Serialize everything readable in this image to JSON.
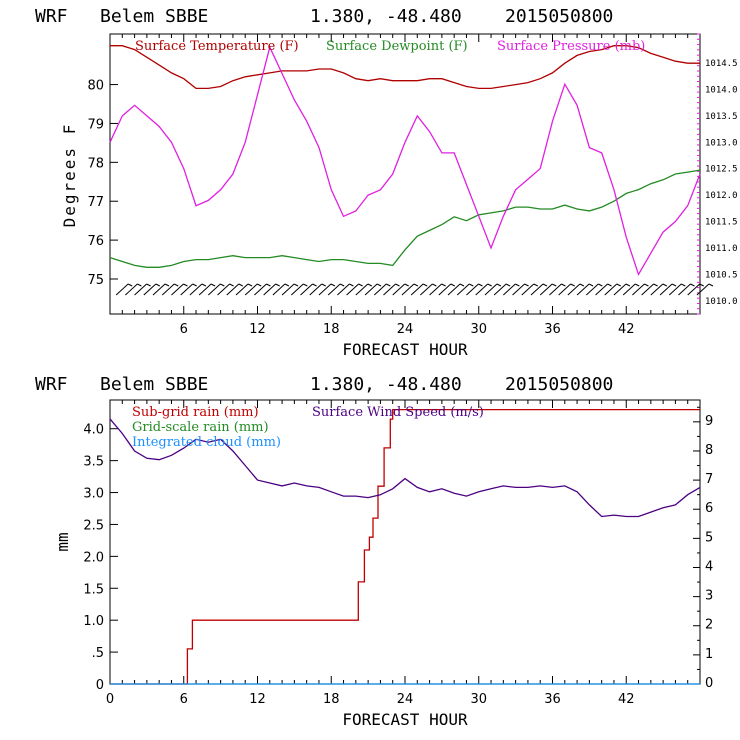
{
  "panels": [
    {
      "header": {
        "model": "WRF",
        "station": "Belem SBBE",
        "coords": "1.380, -48.480",
        "run": "2015050800"
      }
    },
    {
      "header": {
        "model": "WRF",
        "station": "Belem SBBE",
        "coords": "1.380, -48.480",
        "run": "2015050800"
      }
    }
  ],
  "chart_data": [
    {
      "type": "line",
      "xlabel": "FORECAST HOUR",
      "ylabel": "Degrees F",
      "x_ticks": [
        "6",
        "12",
        "18",
        "24",
        "30",
        "36",
        "42"
      ],
      "xlim": [
        0,
        48
      ],
      "y_ticks": [
        "75",
        "76",
        "77",
        "78",
        "79",
        "80"
      ],
      "ylim": [
        74.1,
        81.3
      ],
      "y2_ticks": [
        "1010.0",
        "1010.5",
        "1011.0",
        "1011.5",
        "1012.0",
        "1012.5",
        "1013.0",
        "1013.5",
        "1014.0",
        "1014.5"
      ],
      "y2lim": [
        1009.75,
        1015.05
      ],
      "legend": "top",
      "series": [
        {
          "name": "Surface Temperature (F)",
          "color": "#b00000",
          "axis": "left",
          "x": [
            0,
            1,
            2,
            3,
            4,
            5,
            6,
            7,
            8,
            9,
            10,
            11,
            12,
            13,
            14,
            15,
            16,
            17,
            18,
            19,
            20,
            21,
            22,
            23,
            24,
            25,
            26,
            27,
            28,
            29,
            30,
            31,
            32,
            33,
            34,
            35,
            36,
            37,
            38,
            39,
            40,
            41,
            42,
            43,
            44,
            45,
            46,
            47,
            48
          ],
          "values": [
            81.0,
            81.0,
            80.9,
            80.7,
            80.5,
            80.3,
            80.15,
            79.9,
            79.9,
            79.95,
            80.1,
            80.2,
            80.25,
            80.3,
            80.35,
            80.35,
            80.35,
            80.4,
            80.4,
            80.3,
            80.15,
            80.1,
            80.15,
            80.1,
            80.1,
            80.1,
            80.15,
            80.15,
            80.05,
            79.95,
            79.9,
            79.9,
            79.95,
            80.0,
            80.05,
            80.15,
            80.3,
            80.55,
            80.75,
            80.85,
            80.9,
            81.0,
            81.0,
            80.95,
            80.8,
            80.7,
            80.6,
            80.55,
            80.55
          ]
        },
        {
          "name": "Surface Dewpoint (F)",
          "color": "#238b23",
          "axis": "left",
          "x": [
            0,
            1,
            2,
            3,
            4,
            5,
            6,
            7,
            8,
            9,
            10,
            11,
            12,
            13,
            14,
            15,
            16,
            17,
            18,
            19,
            20,
            21,
            22,
            23,
            24,
            25,
            26,
            27,
            28,
            29,
            30,
            31,
            32,
            33,
            34,
            35,
            36,
            37,
            38,
            39,
            40,
            41,
            42,
            43,
            44,
            45,
            46,
            47,
            48
          ],
          "values": [
            75.55,
            75.45,
            75.35,
            75.3,
            75.3,
            75.35,
            75.45,
            75.5,
            75.5,
            75.55,
            75.6,
            75.55,
            75.55,
            75.55,
            75.6,
            75.55,
            75.5,
            75.45,
            75.5,
            75.5,
            75.45,
            75.4,
            75.4,
            75.35,
            75.75,
            76.1,
            76.25,
            76.4,
            76.6,
            76.5,
            76.65,
            76.7,
            76.75,
            76.85,
            76.85,
            76.8,
            76.8,
            76.9,
            76.8,
            76.75,
            76.85,
            77.0,
            77.2,
            77.3,
            77.45,
            77.55,
            77.7,
            77.75,
            77.8
          ]
        },
        {
          "name": "Surface Pressure (mb)",
          "color": "#e020e0",
          "axis": "right",
          "x": [
            0,
            1,
            2,
            3,
            4,
            5,
            6,
            7,
            8,
            9,
            10,
            11,
            12,
            13,
            14,
            15,
            16,
            17,
            18,
            19,
            20,
            21,
            22,
            23,
            24,
            25,
            26,
            27,
            28,
            29,
            30,
            31,
            32,
            33,
            34,
            35,
            36,
            37,
            38,
            39,
            40,
            41,
            42,
            43,
            44,
            45,
            46,
            47,
            48
          ],
          "values": [
            1013.0,
            1013.5,
            1013.7,
            1013.5,
            1013.3,
            1013.0,
            1012.5,
            1011.8,
            1011.9,
            1012.1,
            1012.4,
            1013.0,
            1013.9,
            1014.8,
            1014.3,
            1013.8,
            1013.4,
            1012.9,
            1012.1,
            1011.6,
            1011.7,
            1012.0,
            1012.1,
            1012.4,
            1013.0,
            1013.5,
            1013.2,
            1012.8,
            1012.8,
            1012.2,
            1011.6,
            1011.0,
            1011.6,
            1012.1,
            1012.3,
            1012.5,
            1013.4,
            1014.1,
            1013.7,
            1012.9,
            1012.8,
            1012.1,
            1011.2,
            1010.5,
            1010.9,
            1011.3,
            1011.5,
            1011.8,
            1012.4
          ]
        }
      ],
      "wind_barbs": "row of wind barbs along bottom of panel"
    },
    {
      "type": "line",
      "xlabel": "FORECAST HOUR",
      "ylabel": "mm",
      "x_ticks": [
        "0",
        "6",
        "12",
        "18",
        "24",
        "30",
        "36",
        "42"
      ],
      "xlim": [
        0,
        48
      ],
      "y_ticks": [
        "0",
        ".5",
        "1.0",
        "1.5",
        "2.0",
        "2.5",
        "3.0",
        "3.5",
        "4.0"
      ],
      "ylim": [
        0,
        4.45
      ],
      "y2_ticks": [
        "0",
        "1",
        "2",
        "3",
        "4",
        "5",
        "6",
        "7",
        "8",
        "9"
      ],
      "y2lim": [
        0,
        9.75
      ],
      "legend": "top-left",
      "series": [
        {
          "name": "Sub-grid rain (mm)",
          "color": "#c00000",
          "axis": "left",
          "x": [
            0,
            6.3,
            6.3,
            6.7,
            6.7,
            20.2,
            20.2,
            20.7,
            20.7,
            21.1,
            21.1,
            21.4,
            21.4,
            21.8,
            21.8,
            22.3,
            22.3,
            22.8,
            22.8,
            23.0,
            23.0,
            48
          ],
          "values": [
            0,
            0,
            0.55,
            0.55,
            1.0,
            1.0,
            1.6,
            1.6,
            2.1,
            2.1,
            2.3,
            2.3,
            2.6,
            2.6,
            3.1,
            3.1,
            3.7,
            3.7,
            4.15,
            4.15,
            4.3,
            4.3
          ]
        },
        {
          "name": "Grid-scale rain (mm)",
          "color": "#238b23",
          "axis": "left",
          "x": [
            0,
            48
          ],
          "values": [
            0,
            0
          ]
        },
        {
          "name": "Integrated cloud (mm)",
          "color": "#1e90ff",
          "axis": "left",
          "x": [
            0,
            48
          ],
          "values": [
            0,
            0
          ]
        },
        {
          "name": "Surface Wind Speed (m/s)",
          "color": "#4b0082",
          "axis": "right",
          "x": [
            0,
            1,
            2,
            3,
            4,
            5,
            6,
            7,
            8,
            9,
            10,
            11,
            12,
            13,
            14,
            15,
            16,
            17,
            18,
            19,
            20,
            21,
            22,
            23,
            24,
            25,
            26,
            27,
            28,
            29,
            30,
            31,
            32,
            33,
            34,
            35,
            36,
            37,
            38,
            39,
            40,
            41,
            42,
            43,
            44,
            45,
            46,
            47,
            48
          ],
          "values": [
            9.1,
            8.6,
            8.0,
            7.75,
            7.7,
            7.85,
            8.1,
            8.4,
            8.3,
            8.4,
            8.0,
            7.5,
            7.0,
            6.9,
            6.8,
            6.9,
            6.8,
            6.75,
            6.6,
            6.45,
            6.45,
            6.4,
            6.5,
            6.7,
            7.05,
            6.75,
            6.6,
            6.7,
            6.55,
            6.45,
            6.6,
            6.7,
            6.8,
            6.75,
            6.75,
            6.8,
            6.75,
            6.8,
            6.6,
            6.15,
            5.75,
            5.8,
            5.75,
            5.75,
            5.9,
            6.05,
            6.15,
            6.5,
            6.75
          ]
        }
      ]
    }
  ]
}
